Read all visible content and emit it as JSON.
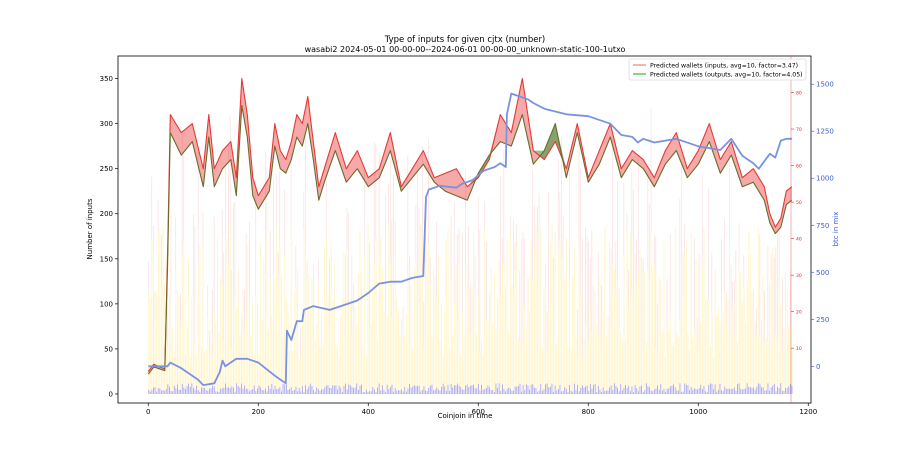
{
  "chart_data": {
    "type": "line",
    "title": "Type of inputs for given cjtx (number)",
    "subtitle": "wasabi2 2024-05-01 00-00-00--2024-06-01 00-00-00_unknown-static-100-1utxo",
    "xlabel": "Coinjoin in time",
    "ylabel": "Number of inputs",
    "y2label": "btc in mix",
    "xlim": [
      -55,
      1205
    ],
    "ylim": [
      -10,
      375
    ],
    "y2lim": [
      -195,
      1650
    ],
    "y3lim": [
      -5,
      90
    ],
    "x_ticks": [
      0,
      200,
      400,
      600,
      800,
      1000,
      1200
    ],
    "y_ticks": [
      0,
      50,
      100,
      150,
      200,
      250,
      300,
      350
    ],
    "y2_ticks": [
      0,
      250,
      500,
      750,
      1000,
      1250,
      1500
    ],
    "y3_ticks": [
      10,
      20,
      30,
      40,
      50,
      60,
      70,
      80
    ],
    "grid": false,
    "legend_position": "top-right",
    "series": [
      {
        "name": "Predicted wallets (inputs, avg=10, factor=3.47)",
        "color": "#f08080",
        "x": [
          0,
          10,
          20,
          30,
          35,
          40,
          60,
          80,
          100,
          110,
          120,
          135,
          150,
          160,
          170,
          180,
          190,
          200,
          210,
          220,
          230,
          240,
          250,
          260,
          270,
          280,
          290,
          300,
          310,
          320,
          340,
          360,
          380,
          400,
          420,
          440,
          460,
          480,
          500,
          520,
          540,
          560,
          580,
          600,
          620,
          640,
          660,
          680,
          700,
          720,
          740,
          760,
          780,
          800,
          820,
          840,
          860,
          880,
          900,
          920,
          940,
          960,
          980,
          1000,
          1020,
          1040,
          1060,
          1080,
          1100,
          1120,
          1130,
          1140,
          1150,
          1160,
          1170
        ],
        "values": [
          25,
          33,
          30,
          28,
          150,
          310,
          290,
          300,
          250,
          310,
          250,
          270,
          280,
          240,
          350,
          310,
          240,
          220,
          230,
          240,
          300,
          270,
          260,
          280,
          310,
          300,
          330,
          280,
          230,
          250,
          290,
          250,
          270,
          240,
          250,
          290,
          230,
          250,
          270,
          240,
          245,
          250,
          230,
          240,
          260,
          310,
          290,
          350,
          270,
          260,
          280,
          250,
          300,
          240,
          270,
          300,
          250,
          270,
          260,
          240,
          270,
          290,
          250,
          270,
          300,
          260,
          280,
          240,
          250,
          230,
          200,
          185,
          195,
          225,
          230
        ]
      },
      {
        "name": "Predicted wallets (outputs, avg=10, factor=4.05)",
        "color": "#3cb043",
        "x": [
          0,
          10,
          20,
          30,
          35,
          40,
          60,
          80,
          100,
          110,
          120,
          135,
          150,
          160,
          170,
          180,
          190,
          200,
          210,
          220,
          230,
          240,
          250,
          260,
          270,
          280,
          290,
          300,
          310,
          320,
          340,
          360,
          380,
          400,
          420,
          440,
          460,
          480,
          500,
          520,
          540,
          560,
          580,
          600,
          620,
          640,
          660,
          680,
          700,
          720,
          740,
          760,
          780,
          800,
          820,
          840,
          860,
          880,
          900,
          920,
          940,
          960,
          980,
          1000,
          1020,
          1040,
          1060,
          1080,
          1100,
          1120,
          1130,
          1140,
          1150,
          1160,
          1170
        ],
        "values": [
          22,
          30,
          28,
          26,
          140,
          290,
          265,
          280,
          230,
          285,
          230,
          250,
          260,
          220,
          320,
          285,
          220,
          205,
          215,
          225,
          275,
          250,
          245,
          260,
          285,
          275,
          300,
          260,
          215,
          235,
          270,
          235,
          250,
          230,
          240,
          270,
          225,
          240,
          255,
          235,
          225,
          220,
          215,
          245,
          265,
          280,
          275,
          310,
          255,
          270,
          300,
          240,
          290,
          235,
          255,
          285,
          240,
          260,
          250,
          230,
          255,
          270,
          240,
          255,
          280,
          245,
          265,
          230,
          235,
          215,
          190,
          178,
          185,
          210,
          215
        ]
      },
      {
        "name": "btc in mix",
        "axis": "right",
        "color": "#6f8be0",
        "x": [
          0,
          30,
          35,
          40,
          60,
          80,
          90,
          100,
          120,
          130,
          135,
          140,
          160,
          170,
          180,
          200,
          230,
          250,
          252,
          260,
          270,
          280,
          283,
          300,
          330,
          350,
          380,
          400,
          420,
          440,
          460,
          480,
          500,
          505,
          510,
          530,
          560,
          570,
          590,
          610,
          630,
          640,
          650,
          652,
          660,
          670,
          690,
          700,
          720,
          760,
          800,
          840,
          860,
          880,
          890,
          900,
          920,
          960,
          1000,
          1040,
          1060,
          1080,
          1100,
          1110,
          1120,
          1130,
          1140,
          1150,
          1160,
          1170
        ],
        "values": [
          0,
          0,
          0,
          20,
          -10,
          -50,
          -70,
          -100,
          -90,
          -30,
          30,
          0,
          40,
          40,
          40,
          20,
          -50,
          -90,
          190,
          140,
          240,
          240,
          300,
          320,
          300,
          320,
          350,
          390,
          440,
          450,
          450,
          470,
          480,
          900,
          940,
          960,
          950,
          970,
          990,
          1040,
          1060,
          1080,
          1060,
          1340,
          1450,
          1440,
          1420,
          1400,
          1370,
          1340,
          1330,
          1290,
          1230,
          1220,
          1190,
          1210,
          1190,
          1210,
          1170,
          1150,
          1210,
          1120,
          1080,
          1050,
          1090,
          1130,
          1110,
          1200,
          1210,
          1210
        ]
      }
    ]
  }
}
